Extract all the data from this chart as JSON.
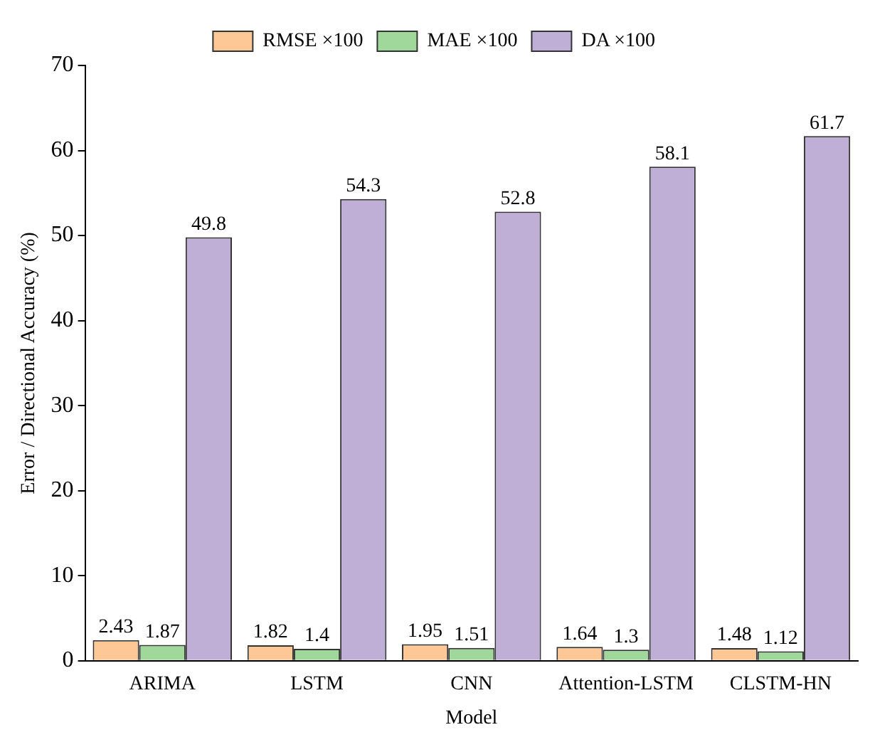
{
  "chart_data": {
    "type": "bar",
    "xlabel": "Model",
    "ylabel": "Error / Directional Accuracy (%)",
    "categories": [
      "ARIMA",
      "LSTM",
      "CNN",
      "Attention-LSTM",
      "CLSTM-HN"
    ],
    "series": [
      {
        "name": "RMSE ×100",
        "color": "#fdc896",
        "values": [
          2.43,
          1.82,
          1.95,
          1.64,
          1.48
        ]
      },
      {
        "name": "MAE ×100",
        "color": "#9fd89a",
        "values": [
          1.87,
          1.4,
          1.51,
          1.3,
          1.12
        ]
      },
      {
        "name": "DA ×100",
        "color": "#bfaed6",
        "values": [
          49.8,
          54.3,
          52.8,
          58.1,
          61.7
        ]
      }
    ],
    "ylim": [
      0,
      70
    ],
    "yticks": [
      0,
      10,
      20,
      30,
      40,
      50,
      60,
      70
    ],
    "grid": false,
    "legend": "top",
    "data_labels": true
  }
}
